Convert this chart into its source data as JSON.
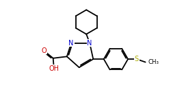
{
  "background": "#ffffff",
  "atom_colors": {
    "C": "#000000",
    "N": "#0000cd",
    "O": "#cc0000",
    "S": "#aaaa00",
    "H": "#000000"
  },
  "bond_color": "#000000",
  "bond_lw": 1.3,
  "figsize": [
    2.5,
    1.5
  ],
  "dpi": 100,
  "xlim": [
    0,
    10
  ],
  "ylim": [
    0,
    6
  ]
}
